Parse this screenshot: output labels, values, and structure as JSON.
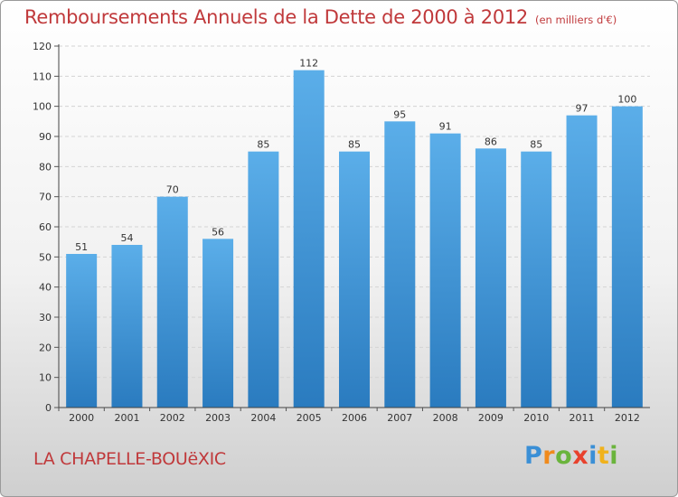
{
  "title": "Remboursements Annuels de la Dette de 2000 à 2012",
  "unit_label": "(en milliers d'€)",
  "location": "LA CHAPELLE-BOUëXIC",
  "logo_text": "Proxiti",
  "colors": {
    "title": "#c0393b",
    "bar_top": "#5baee9",
    "bar_bottom": "#2a7bbf"
  },
  "chart_data": {
    "type": "bar",
    "title": "Remboursements Annuels de la Dette de 2000 à 2012",
    "categories": [
      "2000",
      "2001",
      "2002",
      "2003",
      "2004",
      "2005",
      "2006",
      "2007",
      "2008",
      "2009",
      "2010",
      "2011",
      "2012"
    ],
    "values": [
      51,
      54,
      70,
      56,
      85,
      112,
      85,
      95,
      91,
      86,
      85,
      97,
      100
    ],
    "ylim": [
      0,
      120
    ],
    "yticks": [
      0,
      10,
      20,
      30,
      40,
      50,
      60,
      70,
      80,
      90,
      100,
      110,
      120
    ],
    "grid": true,
    "data_labels": true
  }
}
